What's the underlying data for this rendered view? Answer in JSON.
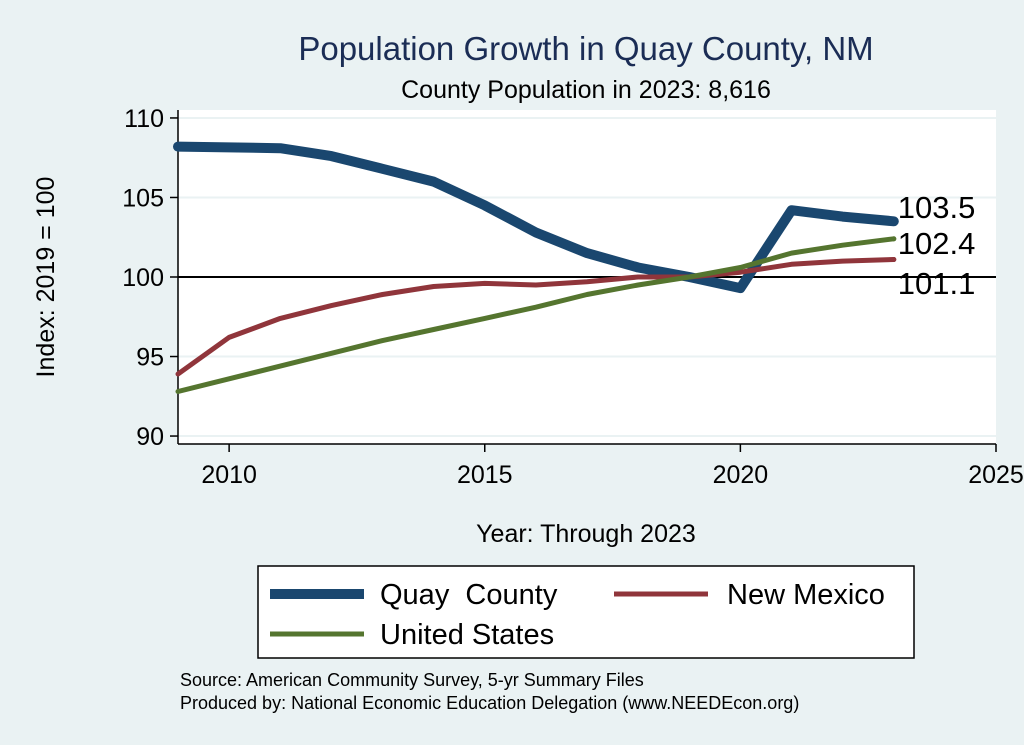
{
  "chart_data": {
    "type": "line",
    "title": "Population Growth in Quay County, NM",
    "subtitle": "County Population in 2023: 8,616",
    "xlabel": "Year: Through 2023",
    "ylabel": "Index: 2019 = 100",
    "xlim": [
      2009,
      2025
    ],
    "ylim": [
      89.5,
      110.5
    ],
    "xticks": [
      2010,
      2015,
      2020,
      2025
    ],
    "yticks": [
      90,
      95,
      100,
      105,
      110
    ],
    "reference_line": 100,
    "grid": true,
    "legend_position": "bottom",
    "series": [
      {
        "name": "Quay  County",
        "color": "#1a476f",
        "end_label": "103.5",
        "points": [
          [
            2009,
            108.2
          ],
          [
            2010,
            108.15
          ],
          [
            2011,
            108.1
          ],
          [
            2012,
            107.6
          ],
          [
            2013,
            106.8
          ],
          [
            2014,
            106.0
          ],
          [
            2015,
            104.5
          ],
          [
            2016,
            102.8
          ],
          [
            2017,
            101.5
          ],
          [
            2018,
            100.6
          ],
          [
            2019,
            100.0
          ],
          [
            2020,
            99.3
          ],
          [
            2021,
            104.2
          ],
          [
            2022,
            103.8
          ],
          [
            2023,
            103.5
          ]
        ]
      },
      {
        "name": "New Mexico",
        "color": "#90353b",
        "end_label": "101.1",
        "points": [
          [
            2009,
            93.9
          ],
          [
            2010,
            96.2
          ],
          [
            2011,
            97.4
          ],
          [
            2012,
            98.2
          ],
          [
            2013,
            98.9
          ],
          [
            2014,
            99.4
          ],
          [
            2015,
            99.6
          ],
          [
            2016,
            99.5
          ],
          [
            2017,
            99.7
          ],
          [
            2018,
            100.0
          ],
          [
            2019,
            100.0
          ],
          [
            2020,
            100.3
          ],
          [
            2021,
            100.8
          ],
          [
            2022,
            101.0
          ],
          [
            2023,
            101.1
          ]
        ]
      },
      {
        "name": "United States",
        "color": "#55752f",
        "end_label": "102.4",
        "points": [
          [
            2009,
            92.8
          ],
          [
            2010,
            93.6
          ],
          [
            2011,
            94.4
          ],
          [
            2012,
            95.2
          ],
          [
            2013,
            96.0
          ],
          [
            2014,
            96.7
          ],
          [
            2015,
            97.4
          ],
          [
            2016,
            98.1
          ],
          [
            2017,
            98.9
          ],
          [
            2018,
            99.5
          ],
          [
            2019,
            100.0
          ],
          [
            2020,
            100.6
          ],
          [
            2021,
            101.5
          ],
          [
            2022,
            102.0
          ],
          [
            2023,
            102.4
          ]
        ]
      }
    ],
    "notes": [
      "Source: American Community Survey, 5-yr Summary Files",
      "Produced by: National Economic Education Delegation (www.NEEDEcon.org)"
    ]
  }
}
